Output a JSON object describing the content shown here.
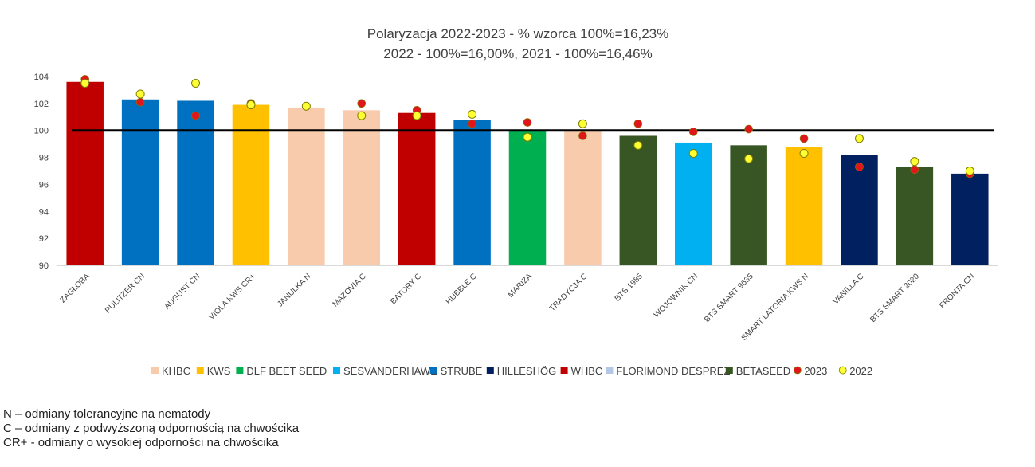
{
  "chart_data": {
    "type": "bar",
    "title": [
      "Polaryzacja 2022-2023 - % wzorca 100%=16,23%",
      "2022 - 100%=16,00%, 2021 - 100%=16,46%"
    ],
    "xlabel": "",
    "ylabel": "",
    "ylim": [
      90,
      104
    ],
    "yticks": [
      90,
      92,
      94,
      96,
      98,
      100,
      102,
      104
    ],
    "reference_line": 100,
    "grid": false,
    "legend_position": "bottom",
    "categories": [
      "ZAGŁOBA",
      "PULITZER CN",
      "AUGUST CN",
      "VIOLA KWS CR+",
      "JANULKA N",
      "MAZOVIA C",
      "BATORY C",
      "HUBBLE C",
      "MARIZA",
      "TRADYCJA C",
      "BTS 1985",
      "WOJOWNIK CN",
      "BTS SMART 9635",
      "SMART LATORIA KWS N",
      "VANILLA C",
      "BTS SMART 2020",
      "FRONTA CN"
    ],
    "values": [
      103.6,
      102.3,
      102.2,
      101.9,
      101.7,
      101.5,
      101.3,
      100.8,
      100.0,
      100.0,
      99.6,
      99.1,
      98.9,
      98.8,
      98.2,
      97.3,
      96.8
    ],
    "bar_groups": [
      "WHBC",
      "STRUBE",
      "STRUBE",
      "KWS",
      "KHBC",
      "KHBC",
      "WHBC",
      "STRUBE",
      "DLF BEET SEED",
      "KHBC",
      "BETASEED",
      "SESVANDERHAWE",
      "BETASEED",
      "KWS",
      "HILLESHÖG",
      "BETASEED",
      "HILLESHÖG"
    ],
    "series": [
      {
        "name": "2023",
        "type": "scatter",
        "color": "#e0161c",
        "values": [
          103.8,
          102.1,
          101.1,
          102.0,
          101.8,
          102.0,
          101.5,
          100.5,
          100.6,
          99.6,
          100.5,
          99.9,
          100.1,
          99.4,
          97.3,
          97.1,
          96.8
        ]
      },
      {
        "name": "2022",
        "type": "scatter",
        "color": "#ffff33",
        "values": [
          103.5,
          102.7,
          103.5,
          101.9,
          101.8,
          101.1,
          101.1,
          101.2,
          99.5,
          100.5,
          98.9,
          98.3,
          97.9,
          98.3,
          99.4,
          97.7,
          97.0
        ]
      }
    ],
    "legend": [
      {
        "name": "KHBC",
        "kind": "square",
        "color": "#f7cbac"
      },
      {
        "name": "KWS",
        "kind": "square",
        "color": "#ffc000"
      },
      {
        "name": "DLF BEET SEED",
        "kind": "square",
        "color": "#00b050"
      },
      {
        "name": "SESVANDERHAWE",
        "kind": "square",
        "color": "#00b0f0"
      },
      {
        "name": "STRUBE",
        "kind": "square",
        "color": "#0070c0"
      },
      {
        "name": "HILLESHÖG",
        "kind": "square",
        "color": "#002060"
      },
      {
        "name": "WHBC",
        "kind": "square",
        "color": "#c00000"
      },
      {
        "name": "FLORIMOND DESPREZ",
        "kind": "square",
        "color": "#b4c7e7"
      },
      {
        "name": "BETASEED",
        "kind": "square",
        "color": "#375623"
      },
      {
        "name": "2023",
        "kind": "dot",
        "color": "#e0161c"
      },
      {
        "name": "2022",
        "kind": "dot",
        "color": "#ffff33"
      }
    ]
  },
  "notes": [
    "N – odmiany tolerancyjne na nematody",
    "C – odmiany z podwyższoną odpornością na chwościka",
    "CR+ - odmiany o wysokiej odporności na chwościka"
  ]
}
